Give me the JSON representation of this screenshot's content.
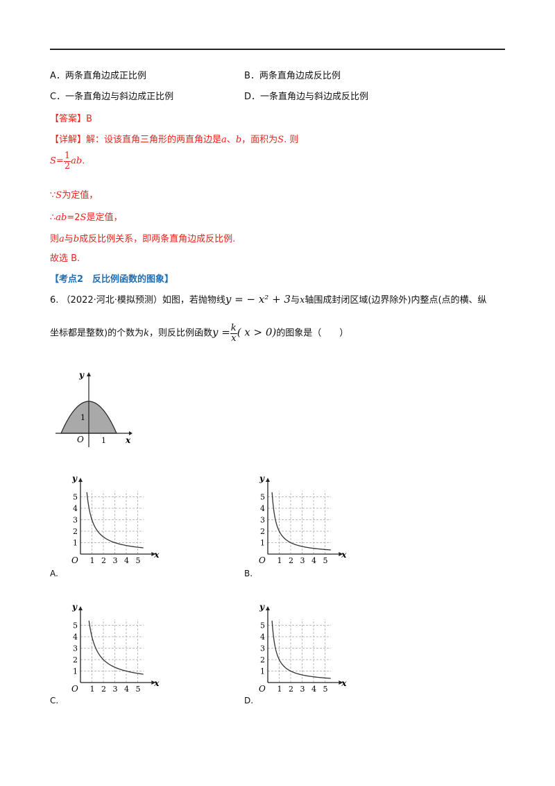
{
  "choices_prev": {
    "a": "A．两条直角边成正比例",
    "b": "B．两条直角边成反比例",
    "c": "C．一条直角边与斜边成正比例",
    "d": "D．一条直角边与斜边成反比例"
  },
  "answer": {
    "label": "【答案】",
    "value": "B"
  },
  "detail": {
    "label": "【详解】",
    "intro": "解：设该直角三角形的两直角边是",
    "a": "a",
    "sep": "、",
    "b": "b",
    "mid": "，面积为",
    "S": "S",
    "end": ". 则",
    "formula_lhs": "S=",
    "frac_num": "1",
    "frac_den": "2",
    "formula_rhs": "ab",
    "formula_end": ".",
    "line2_sym": "∵",
    "line2_S": "S",
    "line2_text": "为定值，",
    "line3_sym": "∴",
    "line3_ab": "ab",
    "line3_eq": "=2",
    "line3_S": "S",
    "line3_text": "是定值，",
    "line4_pre": "则",
    "line4_a": "a",
    "line4_mid": "与",
    "line4_b": "b",
    "line4_text": "成反比例关系，即两条直角边成反比例.",
    "line5": "故选 B."
  },
  "section": {
    "title": "【考点2　反比例函数的图象】"
  },
  "question": {
    "number": "6.",
    "source": "（2022·河北·模拟预测）",
    "text1": "如图，若抛物线",
    "eq1": "y = − x² + 3",
    "text2": "与",
    "x": "x",
    "text3": "轴围成封闭区域(边界除外)内整点(点的横、纵",
    "text4": "坐标都是整数)的个数为",
    "k": "k",
    "text5": "，则反比例函数",
    "func_y": "y =",
    "func_num": "k",
    "func_den": "x",
    "func_cond": "( x > 0)",
    "text6": "的图象是（　　）"
  },
  "parabola_figure": {
    "y_label": "y",
    "x_label": "x",
    "origin": "O",
    "tick_1_x": "1",
    "tick_1_y": "1"
  },
  "options": [
    {
      "label": "A.",
      "k": 3
    },
    {
      "label": "B.",
      "k": 2
    },
    {
      "label": "C.",
      "k": 4
    },
    {
      "label": "D.",
      "k": 2
    }
  ],
  "option_axes": {
    "x_label": "x",
    "y_label": "y",
    "origin": "O",
    "x_ticks": [
      "1",
      "2",
      "3",
      "4",
      "5"
    ],
    "y_ticks": [
      "1",
      "2",
      "3",
      "4",
      "5"
    ]
  }
}
